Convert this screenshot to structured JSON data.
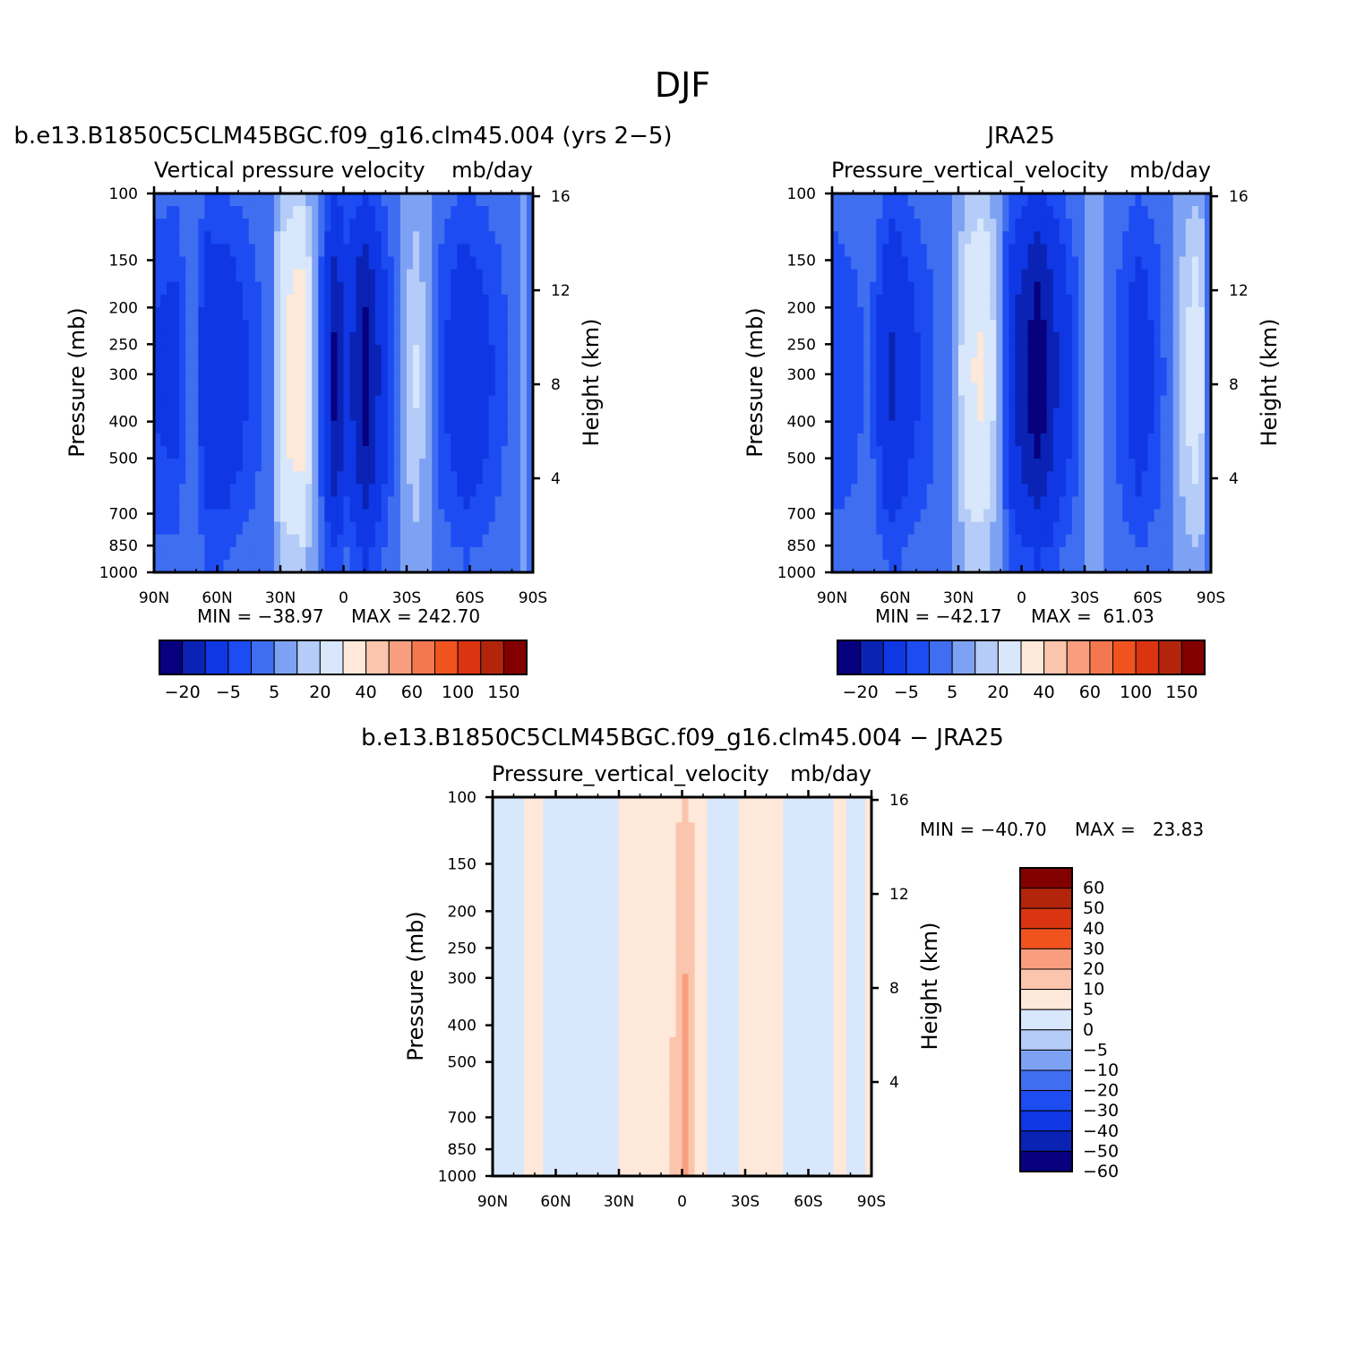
{
  "title": "DJF",
  "colors": {
    "abs_scale": [
      "#07007f",
      "#0a23b4",
      "#0f37e4",
      "#1d4cf2",
      "#3f6ef0",
      "#7ea2f3",
      "#b4ccf7",
      "#d8e7fb",
      "#fde8d9",
      "#fbc5ad",
      "#f89e7f",
      "#f4784f",
      "#f1531f",
      "#da3411",
      "#b3250b",
      "#820000"
    ],
    "diff_scale": [
      "#07007f",
      "#0a23b4",
      "#0f37e4",
      "#1d4cf2",
      "#3f6ef0",
      "#7ea2f3",
      "#b4ccf7",
      "#d8e7fb",
      "#fde8d9",
      "#fbc5ad",
      "#f89e7f",
      "#f1531f",
      "#da3411",
      "#b3250b",
      "#820000"
    ]
  },
  "chart_data": [
    {
      "type": "heatmap",
      "id": "model",
      "title": "b.e13.B1850C5CLM45BGC.f09_g16.clm45.004 (yrs 2−5)",
      "left_subtitle": "Vertical pressure velocity",
      "units": "mb/day",
      "xlabel": "",
      "ylabel": "Pressure (mb)",
      "y2label": "Height (km)",
      "x_ticks": [
        "90N",
        "60N",
        "30N",
        "0",
        "30S",
        "60S",
        "90S"
      ],
      "x_range": [
        90,
        -90
      ],
      "y_ticks": [
        100,
        150,
        200,
        250,
        300,
        400,
        500,
        700,
        850,
        1000
      ],
      "y_range": [
        100,
        1000
      ],
      "y_scale": "log",
      "y2_ticks": [
        16,
        12,
        8,
        4
      ],
      "min_label": "MIN = −38.97",
      "max_label": "MAX = 242.70",
      "min": -38.97,
      "max": 242.7,
      "colorbar_labels": [
        "−20",
        "−5",
        "5",
        "20",
        "40",
        "60",
        "100",
        "150"
      ],
      "field": [
        {
          "lat": 90,
          "v": -9
        },
        {
          "lat": 80,
          "v": -11
        },
        {
          "lat": 72,
          "v": 0
        },
        {
          "lat": 65,
          "v": -15
        },
        {
          "lat": 55,
          "v": -14
        },
        {
          "lat": 45,
          "v": -8
        },
        {
          "lat": 35,
          "v": -2
        },
        {
          "lat": 28,
          "v": 18
        },
        {
          "lat": 20,
          "v": 24
        },
        {
          "lat": 14,
          "v": 4
        },
        {
          "lat": 10,
          "v": -8
        },
        {
          "lat": 4,
          "v": -28
        },
        {
          "lat": -2,
          "v": -12
        },
        {
          "lat": -10,
          "v": -30
        },
        {
          "lat": -18,
          "v": -14
        },
        {
          "lat": -28,
          "v": 3
        },
        {
          "lat": -35,
          "v": 9
        },
        {
          "lat": -45,
          "v": -6
        },
        {
          "lat": -58,
          "v": -15
        },
        {
          "lat": -68,
          "v": -10
        },
        {
          "lat": -78,
          "v": -4
        },
        {
          "lat": -86,
          "v": 2
        },
        {
          "lat": -90,
          "v": -4
        }
      ]
    },
    {
      "type": "heatmap",
      "id": "obs",
      "title": "JRA25",
      "left_subtitle": "Pressure_vertical_velocity",
      "units": "mb/day",
      "xlabel": "",
      "ylabel": "Pressure (mb)",
      "y2label": "Height (km)",
      "x_ticks": [
        "90N",
        "60N",
        "30N",
        "0",
        "30S",
        "60S",
        "90S"
      ],
      "x_range": [
        90,
        -90
      ],
      "y_ticks": [
        100,
        150,
        200,
        250,
        300,
        400,
        500,
        700,
        850,
        1000
      ],
      "y_range": [
        100,
        1000
      ],
      "y_scale": "log",
      "y2_ticks": [
        16,
        12,
        8,
        4
      ],
      "min_label": "MIN = −42.17",
      "max_label": "MAX =  61.03",
      "min": -42.17,
      "max": 61.03,
      "colorbar_labels": [
        "−20",
        "−5",
        "5",
        "20",
        "40",
        "60",
        "100",
        "150"
      ],
      "field": [
        {
          "lat": 90,
          "v": -8
        },
        {
          "lat": 80,
          "v": -6
        },
        {
          "lat": 72,
          "v": -3
        },
        {
          "lat": 62,
          "v": -18
        },
        {
          "lat": 52,
          "v": -10
        },
        {
          "lat": 42,
          "v": -5
        },
        {
          "lat": 32,
          "v": 1
        },
        {
          "lat": 25,
          "v": 16
        },
        {
          "lat": 18,
          "v": 18
        },
        {
          "lat": 12,
          "v": 6
        },
        {
          "lat": 6,
          "v": -12
        },
        {
          "lat": 0,
          "v": -22
        },
        {
          "lat": -8,
          "v": -32
        },
        {
          "lat": -16,
          "v": -18
        },
        {
          "lat": -26,
          "v": -6
        },
        {
          "lat": -34,
          "v": 4
        },
        {
          "lat": -44,
          "v": -4
        },
        {
          "lat": -56,
          "v": -13
        },
        {
          "lat": -66,
          "v": -6
        },
        {
          "lat": -76,
          "v": 6
        },
        {
          "lat": -84,
          "v": 14
        },
        {
          "lat": -90,
          "v": -5
        }
      ]
    },
    {
      "type": "heatmap",
      "id": "diff",
      "title": "b.e13.B1850C5CLM45BGC.f09_g16.clm45.004 − JRA25",
      "left_subtitle": "Pressure_vertical_velocity",
      "units": "mb/day",
      "xlabel": "",
      "ylabel": "Pressure (mb)",
      "y2label": "Height (km)",
      "x_ticks": [
        "90N",
        "60N",
        "30N",
        "0",
        "30S",
        "60S",
        "90S"
      ],
      "x_range": [
        90,
        -90
      ],
      "y_ticks": [
        100,
        150,
        200,
        250,
        300,
        400,
        500,
        700,
        850,
        1000
      ],
      "y_range": [
        100,
        1000
      ],
      "y_scale": "log",
      "y2_ticks": [
        16,
        12,
        8,
        4
      ],
      "min_label": "MIN = −40.70",
      "max_label": "MAX =   23.83",
      "min": -40.7,
      "max": 23.83,
      "colorbar_labels": [
        "60",
        "50",
        "40",
        "30",
        "20",
        "10",
        "5",
        "0",
        "−5",
        "−10",
        "−20",
        "−30",
        "−40",
        "−50",
        "−60"
      ],
      "field": [
        {
          "lat": 90,
          "v": -2
        },
        {
          "lat": 80,
          "v": -3
        },
        {
          "lat": 72,
          "v": 2
        },
        {
          "lat": 62,
          "v": -2
        },
        {
          "lat": 52,
          "v": -3
        },
        {
          "lat": 42,
          "v": -4
        },
        {
          "lat": 32,
          "v": -2
        },
        {
          "lat": 26,
          "v": 2
        },
        {
          "lat": 18,
          "v": 3
        },
        {
          "lat": 10,
          "v": 2
        },
        {
          "lat": 3,
          "v": 6
        },
        {
          "lat": -2,
          "v": 12
        },
        {
          "lat": -8,
          "v": 2
        },
        {
          "lat": -16,
          "v": -2
        },
        {
          "lat": -26,
          "v": -1
        },
        {
          "lat": -36,
          "v": 3
        },
        {
          "lat": -44,
          "v": 1
        },
        {
          "lat": -56,
          "v": -2
        },
        {
          "lat": -66,
          "v": -3
        },
        {
          "lat": -76,
          "v": 2
        },
        {
          "lat": -84,
          "v": -4
        },
        {
          "lat": -90,
          "v": 2
        }
      ]
    }
  ]
}
